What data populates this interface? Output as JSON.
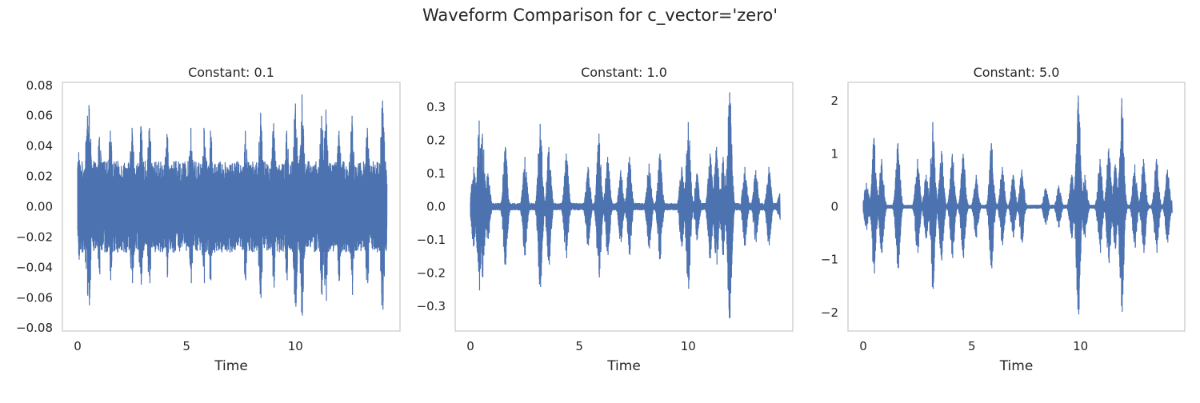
{
  "figure": {
    "title": "Waveform Comparison for c_vector='zero'"
  },
  "colors": {
    "line": "#4c72b0",
    "axes_edge": "#cccccc",
    "text": "#262626",
    "background": "#ffffff"
  },
  "chart_data": [
    {
      "type": "line",
      "title": "Constant: 0.1",
      "xlabel": "Time",
      "ylabel": "",
      "grid": false,
      "xlim": [
        -0.7,
        14.8
      ],
      "ylim": [
        -0.082,
        0.082
      ],
      "xticks": [
        0,
        5,
        10
      ],
      "xtick_labels": [
        "0",
        "5",
        "10"
      ],
      "yticks": [
        -0.08,
        -0.06,
        -0.04,
        -0.02,
        0.0,
        0.02,
        0.04,
        0.06,
        0.08
      ],
      "ytick_labels": [
        "−0.08",
        "−0.06",
        "−0.04",
        "−0.02",
        "0.00",
        "0.02",
        "0.04",
        "0.06",
        "0.08"
      ],
      "duration": 14.2,
      "envelope": {
        "base": 0.03,
        "peaks": [
          [
            0.05,
            0.036
          ],
          [
            0.45,
            0.06
          ],
          [
            0.52,
            0.067
          ],
          [
            1.0,
            0.046
          ],
          [
            1.5,
            0.05
          ],
          [
            2.5,
            0.052
          ],
          [
            2.9,
            0.053
          ],
          [
            3.3,
            0.052
          ],
          [
            4.1,
            0.048
          ],
          [
            5.2,
            0.052
          ],
          [
            5.8,
            0.052
          ],
          [
            6.1,
            0.05
          ],
          [
            7.7,
            0.05
          ],
          [
            8.4,
            0.062
          ],
          [
            9.0,
            0.055
          ],
          [
            9.6,
            0.05
          ],
          [
            10.0,
            0.068
          ],
          [
            10.3,
            0.074
          ],
          [
            11.2,
            0.06
          ],
          [
            11.4,
            0.064
          ],
          [
            12.0,
            0.05
          ],
          [
            12.6,
            0.06
          ],
          [
            13.3,
            0.052
          ],
          [
            14.0,
            0.07
          ]
        ]
      },
      "series": [
        {
          "values_summary": "dense noise-like waveform between about -0.075 and 0.074"
        }
      ]
    },
    {
      "type": "line",
      "title": "Constant: 1.0",
      "xlabel": "Time",
      "ylabel": "",
      "grid": false,
      "xlim": [
        -0.7,
        14.8
      ],
      "ylim": [
        -0.375,
        0.375
      ],
      "xticks": [
        0,
        5,
        10
      ],
      "xtick_labels": [
        "0",
        "5",
        "10"
      ],
      "yticks": [
        -0.3,
        -0.2,
        -0.1,
        0.0,
        0.1,
        0.2,
        0.3
      ],
      "ytick_labels": [
        "−0.3",
        "−0.2",
        "−0.1",
        "0.0",
        "0.1",
        "0.2",
        "0.3"
      ],
      "duration": 14.2,
      "envelope": {
        "base": 0.01,
        "peaks": [
          [
            0.15,
            0.12
          ],
          [
            0.4,
            0.26
          ],
          [
            0.55,
            0.22
          ],
          [
            0.8,
            0.1
          ],
          [
            1.6,
            0.18
          ],
          [
            2.5,
            0.15
          ],
          [
            3.2,
            0.25
          ],
          [
            3.6,
            0.18
          ],
          [
            4.4,
            0.16
          ],
          [
            5.4,
            0.12
          ],
          [
            5.9,
            0.22
          ],
          [
            6.3,
            0.15
          ],
          [
            6.9,
            0.11
          ],
          [
            7.3,
            0.15
          ],
          [
            8.2,
            0.13
          ],
          [
            8.7,
            0.16
          ],
          [
            9.7,
            0.12
          ],
          [
            10.0,
            0.255
          ],
          [
            10.4,
            0.1
          ],
          [
            11.0,
            0.16
          ],
          [
            11.3,
            0.18
          ],
          [
            11.6,
            0.15
          ],
          [
            11.9,
            0.345
          ],
          [
            12.6,
            0.12
          ],
          [
            13.1,
            0.11
          ],
          [
            13.7,
            0.12
          ],
          [
            14.2,
            0.04
          ]
        ]
      },
      "series": [
        {
          "values_summary": "bursty waveform with peaks near 0.345 at about t=11.9"
        }
      ]
    },
    {
      "type": "line",
      "title": "Constant: 5.0",
      "xlabel": "Time",
      "ylabel": "",
      "grid": false,
      "xlim": [
        -0.7,
        14.8
      ],
      "ylim": [
        -2.35,
        2.35
      ],
      "xticks": [
        0,
        5,
        10
      ],
      "xtick_labels": [
        "0",
        "5",
        "10"
      ],
      "yticks": [
        -2,
        -1,
        0,
        1,
        2
      ],
      "ytick_labels": [
        "−2",
        "−1",
        "0",
        "1",
        "2"
      ],
      "duration": 14.2,
      "envelope": {
        "base": 0.03,
        "peaks": [
          [
            0.15,
            0.45
          ],
          [
            0.5,
            1.3
          ],
          [
            0.85,
            0.9
          ],
          [
            1.6,
            1.2
          ],
          [
            2.5,
            0.9
          ],
          [
            2.9,
            0.6
          ],
          [
            3.2,
            1.6
          ],
          [
            3.6,
            1.05
          ],
          [
            4.1,
            1.0
          ],
          [
            4.6,
            1.0
          ],
          [
            5.2,
            0.6
          ],
          [
            5.9,
            1.2
          ],
          [
            6.4,
            0.75
          ],
          [
            6.9,
            0.6
          ],
          [
            7.3,
            0.7
          ],
          [
            8.4,
            0.35
          ],
          [
            9.0,
            0.4
          ],
          [
            9.6,
            0.6
          ],
          [
            9.9,
            2.1
          ],
          [
            10.2,
            0.6
          ],
          [
            10.9,
            0.9
          ],
          [
            11.3,
            1.1
          ],
          [
            11.6,
            0.8
          ],
          [
            11.9,
            2.05
          ],
          [
            12.5,
            0.8
          ],
          [
            12.9,
            0.9
          ],
          [
            13.5,
            0.9
          ],
          [
            14.0,
            0.7
          ],
          [
            14.2,
            0.12
          ]
        ]
      },
      "series": [
        {
          "values_summary": "bursty waveform with peaks near ±2.1 at about t=9.9 and t=11.9"
        }
      ]
    }
  ]
}
